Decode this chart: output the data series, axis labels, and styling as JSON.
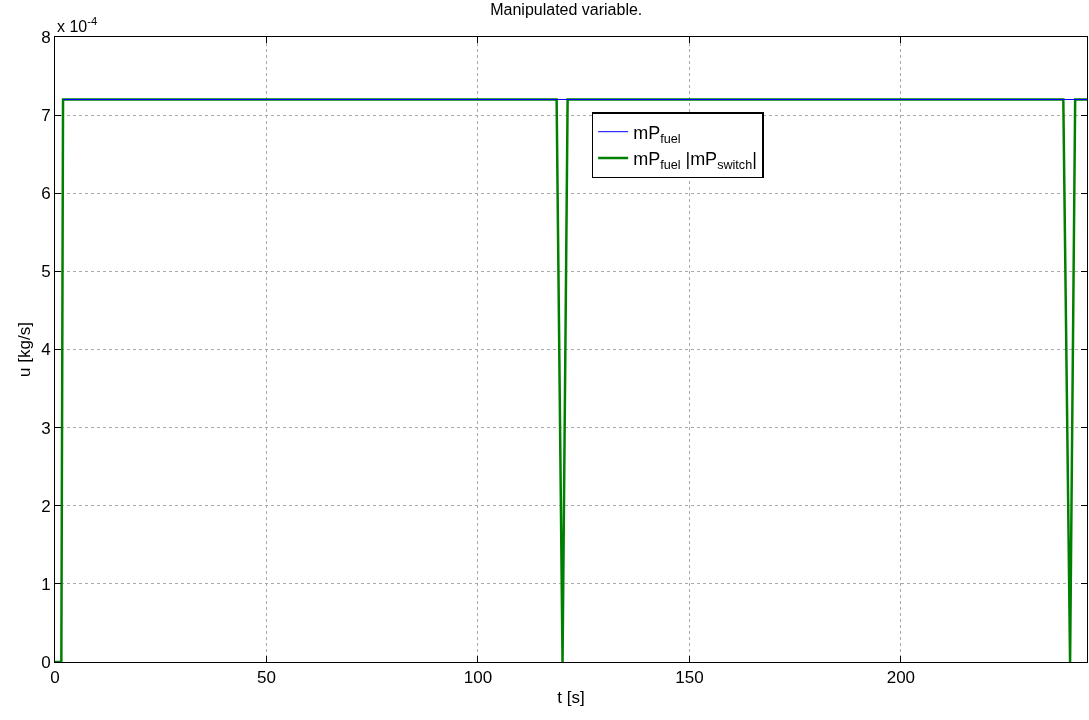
{
  "chart_data": {
    "type": "line",
    "title": "Manipulated variable.",
    "xlabel": "t [s]",
    "ylabel": "u [kg/s]",
    "annotations": [
      "x 10$^{-4}$"
    ],
    "series": [
      {
        "name": "mP$_{fuel}$",
        "color": "#0000ff",
        "x": [
          2,
          244
        ],
        "values": [
          7.2,
          7.2
        ]
      },
      {
        "name": "mP$_{fuel}$ |mP$_{switch}$|",
        "color": "#008000",
        "x": [
          0,
          1.5,
          1.9,
          118.6,
          120,
          121.2,
          238.4,
          240,
          241.2,
          244
        ],
        "values": [
          0,
          0,
          7.2,
          7.2,
          0,
          7.2,
          7.2,
          0,
          7.2,
          7.2
        ]
      }
    ],
    "xlim": [
      0,
      244
    ],
    "xticks": [
      0,
      50,
      100,
      150,
      200
    ],
    "ylim": [
      0,
      8
    ],
    "yticks": [
      0,
      1,
      2,
      3,
      4,
      5,
      6,
      7,
      8
    ],
    "grid": true,
    "legend": "top",
    "marker": "none",
    "line_style": "solid"
  }
}
